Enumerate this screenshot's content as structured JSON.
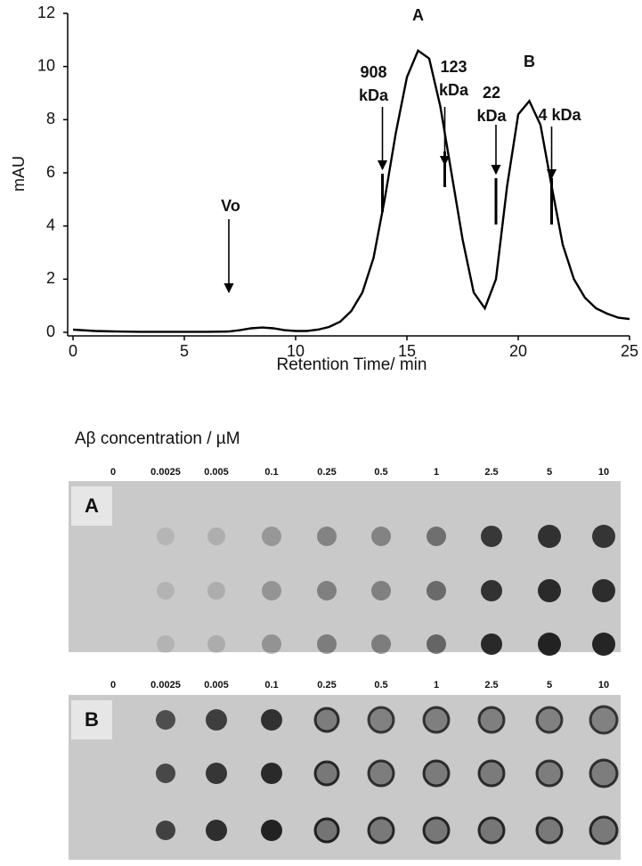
{
  "chart_data": {
    "type": "line",
    "x_label": "Retention Time/ min",
    "y_label": "mAU",
    "xlim": [
      0,
      25
    ],
    "xticks": [
      0,
      5,
      10,
      15,
      20,
      25
    ],
    "ylim": [
      0,
      12
    ],
    "yticks": [
      0,
      2,
      4,
      6,
      8,
      10,
      12
    ],
    "color": "#000000",
    "x": [
      0,
      1,
      2,
      3,
      4,
      5,
      6,
      7,
      7.5,
      8,
      8.5,
      9,
      9.5,
      10,
      10.5,
      11,
      11.5,
      12,
      12.5,
      13,
      13.5,
      14,
      14.5,
      15,
      15.5,
      16,
      16.5,
      17,
      17.5,
      18,
      18.5,
      19,
      19.5,
      20,
      20.5,
      21,
      21.5,
      22,
      22.5,
      23,
      23.5,
      24,
      24.5,
      25
    ],
    "values": [
      0.1,
      0.05,
      0.03,
      0.02,
      0.02,
      0.02,
      0.02,
      0.03,
      0.08,
      0.15,
      0.18,
      0.15,
      0.08,
      0.05,
      0.05,
      0.1,
      0.2,
      0.4,
      0.8,
      1.5,
      2.8,
      5.0,
      7.5,
      9.6,
      10.6,
      10.3,
      8.5,
      6.0,
      3.5,
      1.5,
      0.9,
      2.0,
      5.5,
      8.2,
      8.7,
      7.8,
      5.5,
      3.3,
      2.0,
      1.3,
      0.9,
      0.7,
      0.55,
      0.5
    ],
    "annotations": [
      {
        "x": 7,
        "lines": [
          "Vo"
        ]
      },
      {
        "x": 15.5,
        "lines": [
          "A"
        ]
      },
      {
        "x": 20.5,
        "lines": [
          "B"
        ]
      },
      {
        "x": 13.9,
        "lines": [
          "908",
          "kDa"
        ]
      },
      {
        "x": 16.7,
        "lines": [
          "123",
          "kDa"
        ]
      },
      {
        "x": 19.0,
        "lines": [
          "22",
          "kDa"
        ]
      },
      {
        "x": 21.5,
        "lines": [
          "4 kDa"
        ]
      }
    ]
  },
  "blots": {
    "title": "Aβ concentration / µM",
    "panels": [
      {
        "label": "A",
        "concentrations": [
          "0",
          "0.0025",
          "0.005",
          "0.1",
          "0.25",
          "0.5",
          "1",
          "2.5",
          "5",
          "10"
        ]
      },
      {
        "label": "B",
        "concentrations": [
          "0",
          "0.0025",
          "0.005",
          "0.1",
          "0.25",
          "0.5",
          "1",
          "2.5",
          "5",
          "10"
        ]
      }
    ]
  }
}
